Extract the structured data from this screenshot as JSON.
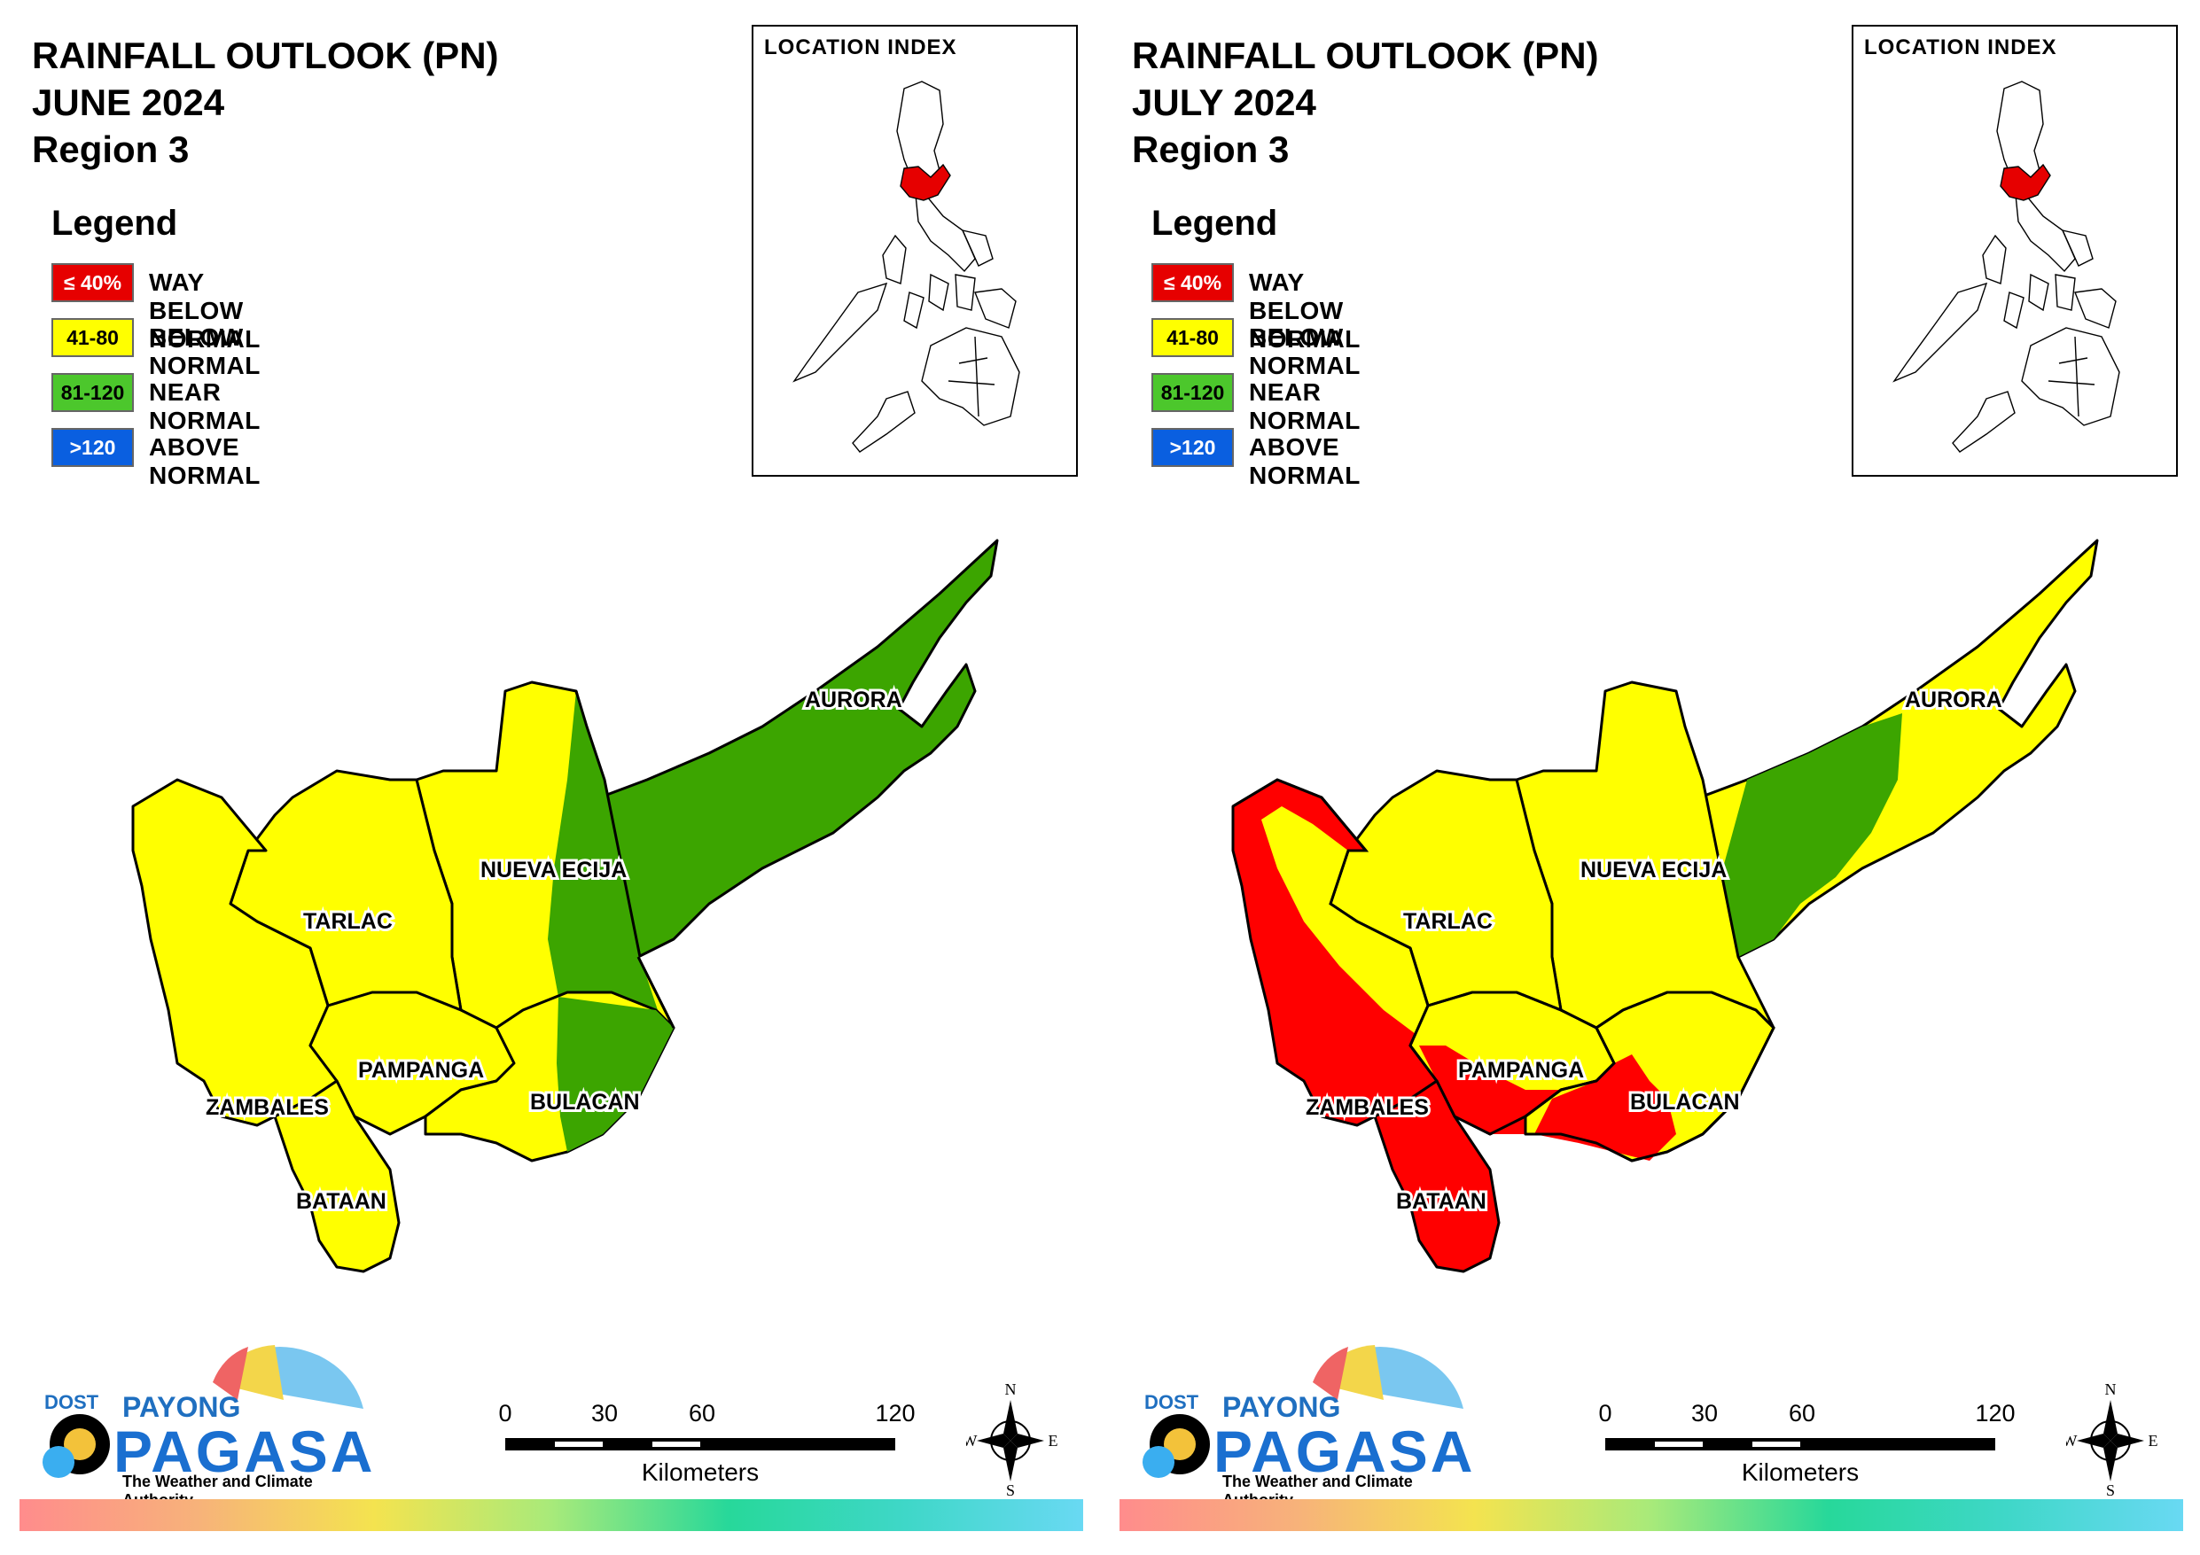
{
  "panels": [
    {
      "title_lines": [
        "RAINFALL OUTLOOK (PN)",
        "JUNE 2024",
        "Region 3"
      ],
      "legend": {
        "heading": "Legend",
        "items": [
          {
            "code": "≤ 40%",
            "label": "WAY BELOW NORMAL",
            "color": "#e60000",
            "text_color": "#ffffff"
          },
          {
            "code": "41-80",
            "label": "BELOW NORMAL",
            "color": "#ffff00",
            "text_color": "#000000"
          },
          {
            "code": "81-120",
            "label": "NEAR NORMAL",
            "color": "#4cc72c",
            "text_color": "#000000"
          },
          {
            "code": ">120",
            "label": "ABOVE NORMAL",
            "color": "#0a5fe0",
            "text_color": "#ffffff"
          }
        ]
      },
      "location_index": {
        "label": "LOCATION INDEX"
      },
      "provinces": [
        {
          "name": "AURORA",
          "category": "near"
        },
        {
          "name": "NUEVA ECIJA",
          "category": "below"
        },
        {
          "name": "TARLAC",
          "category": "below"
        },
        {
          "name": "PAMPANGA",
          "category": "below"
        },
        {
          "name": "BULACAN",
          "category": "below"
        },
        {
          "name": "ZAMBALES",
          "category": "below"
        },
        {
          "name": "BATAAN",
          "category": "below"
        }
      ],
      "scale_bar": {
        "ticks": [
          "0",
          "30",
          "60",
          "120"
        ],
        "unit": "Kilometers"
      },
      "compass": {
        "n": "N",
        "s": "S",
        "e": "E",
        "w": "W"
      },
      "logo": {
        "dost": "DOST",
        "payong": "PAYONG",
        "pagasa": "PAGASA",
        "tagline": "The Weather and Climate Authority"
      }
    },
    {
      "title_lines": [
        "RAINFALL OUTLOOK (PN)",
        "JULY 2024",
        "Region 3"
      ],
      "legend": {
        "heading": "Legend",
        "items": [
          {
            "code": "≤ 40%",
            "label": "WAY BELOW NORMAL",
            "color": "#e60000",
            "text_color": "#ffffff"
          },
          {
            "code": "41-80",
            "label": "BELOW NORMAL",
            "color": "#ffff00",
            "text_color": "#000000"
          },
          {
            "code": "81-120",
            "label": "NEAR NORMAL",
            "color": "#4cc72c",
            "text_color": "#000000"
          },
          {
            "code": ">120",
            "label": "ABOVE NORMAL",
            "color": "#0a5fe0",
            "text_color": "#ffffff"
          }
        ]
      },
      "location_index": {
        "label": "LOCATION INDEX"
      },
      "provinces": [
        {
          "name": "AURORA",
          "category": "below"
        },
        {
          "name": "NUEVA ECIJA",
          "category": "below"
        },
        {
          "name": "TARLAC",
          "category": "below"
        },
        {
          "name": "PAMPANGA",
          "category": "below"
        },
        {
          "name": "BULACAN",
          "category": "below"
        },
        {
          "name": "ZAMBALES",
          "category": "way_below"
        },
        {
          "name": "BATAAN",
          "category": "way_below"
        }
      ],
      "scale_bar": {
        "ticks": [
          "0",
          "30",
          "60",
          "120"
        ],
        "unit": "Kilometers"
      },
      "compass": {
        "n": "N",
        "s": "S",
        "e": "E",
        "w": "W"
      },
      "logo": {
        "dost": "DOST",
        "payong": "PAYONG",
        "pagasa": "PAGASA",
        "tagline": "The Weather and Climate Authority"
      }
    }
  ],
  "colors": {
    "way_below": "#ff0000",
    "below": "#ffff00",
    "near": "#3ca500",
    "above": "#0a5fe0",
    "highlight_region": "#e60000"
  }
}
